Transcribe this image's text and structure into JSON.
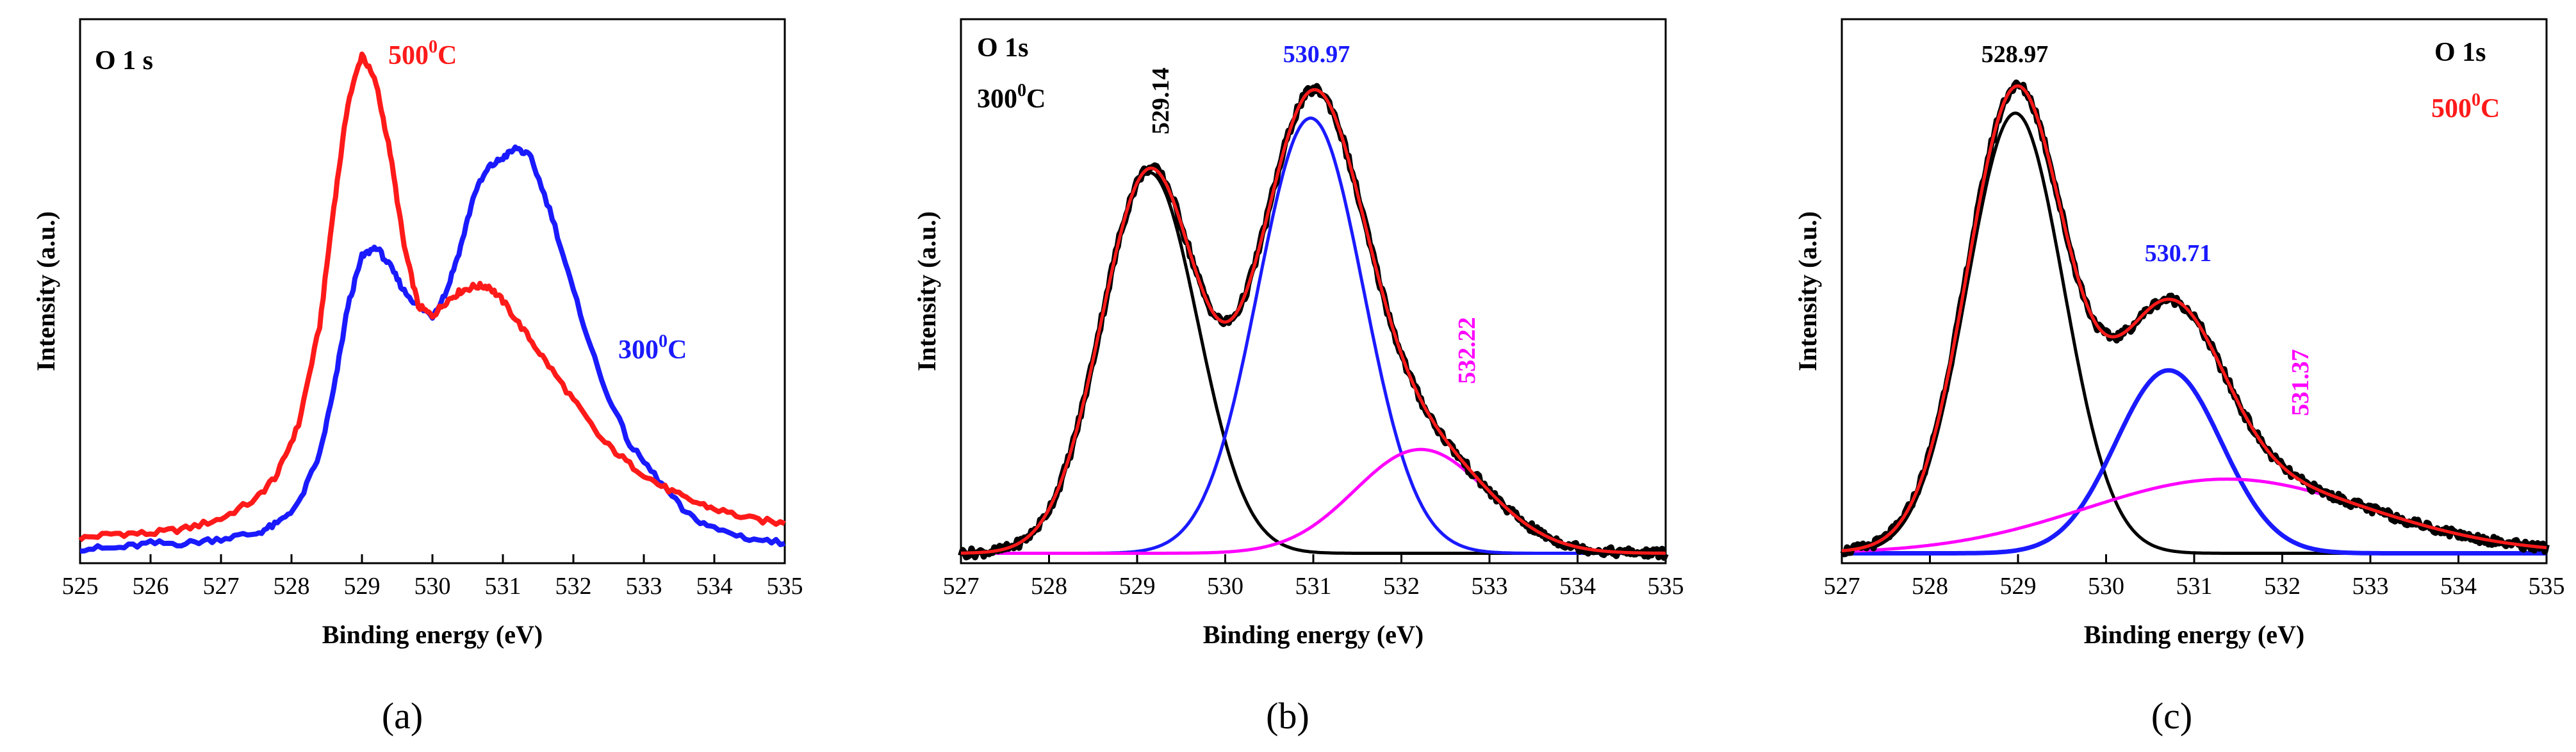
{
  "chart_data": [
    {
      "type": "line",
      "panel_label": "(a)",
      "annotation": "O 1 s",
      "xlabel": "Binding energy (eV)",
      "ylabel": "Intensity (a.u.)",
      "xlim": [
        525,
        535
      ],
      "ylim": [
        0,
        1.1
      ],
      "x_ticks": [
        525,
        526,
        527,
        528,
        529,
        530,
        531,
        532,
        533,
        534,
        535
      ],
      "x_tick_labels": [
        "525",
        "526",
        "527",
        "528",
        "529",
        "530",
        "531",
        "532",
        "533",
        "534",
        "535"
      ],
      "y_ticks": [],
      "series": [
        {
          "name": "500⁰C",
          "label_main": "500",
          "label_sup": "0",
          "label_tail": "C",
          "color": "#ff1a1a",
          "label_corner": "top-left",
          "x": [
            525.0,
            525.5,
            526.0,
            526.5,
            527.0,
            527.5,
            527.8,
            528.1,
            528.4,
            528.6,
            528.8,
            529.0,
            529.2,
            529.4,
            529.6,
            529.8,
            530.0,
            530.2,
            530.4,
            530.6,
            530.8,
            531.0,
            531.3,
            531.6,
            532.0,
            532.4,
            532.8,
            533.2,
            533.6,
            534.0,
            534.5,
            535.0
          ],
          "y": [
            0.05,
            0.06,
            0.06,
            0.07,
            0.09,
            0.13,
            0.18,
            0.28,
            0.48,
            0.72,
            0.93,
            1.03,
            0.97,
            0.83,
            0.64,
            0.52,
            0.5,
            0.53,
            0.55,
            0.56,
            0.56,
            0.53,
            0.47,
            0.41,
            0.33,
            0.25,
            0.2,
            0.16,
            0.13,
            0.11,
            0.09,
            0.08
          ]
        },
        {
          "name": "300⁰C",
          "label_main": "300",
          "label_sup": "0",
          "label_tail": "C",
          "color": "#1a1aff",
          "label_corner": "mid-right",
          "x": [
            525.0,
            525.5,
            526.0,
            526.5,
            527.0,
            527.5,
            527.8,
            528.1,
            528.4,
            528.6,
            528.8,
            529.0,
            529.2,
            529.4,
            529.6,
            529.8,
            530.0,
            530.2,
            530.4,
            530.6,
            530.8,
            531.0,
            531.2,
            531.4,
            531.7,
            532.0,
            532.4,
            532.8,
            533.2,
            533.6,
            534.0,
            534.5,
            535.0
          ],
          "y": [
            0.03,
            0.03,
            0.04,
            0.04,
            0.05,
            0.06,
            0.08,
            0.12,
            0.22,
            0.35,
            0.52,
            0.62,
            0.64,
            0.6,
            0.55,
            0.52,
            0.5,
            0.55,
            0.64,
            0.75,
            0.8,
            0.82,
            0.84,
            0.82,
            0.7,
            0.55,
            0.37,
            0.24,
            0.17,
            0.1,
            0.07,
            0.05,
            0.04
          ]
        }
      ]
    },
    {
      "type": "line",
      "panel_label": "(b)",
      "annotation": "O 1s",
      "annotation2_main": "300",
      "annotation2_sup": "0",
      "annotation2_tail": "C",
      "xlabel": "Binding energy (eV)",
      "ylabel": "Intensity (a.u.)",
      "xlim": [
        527,
        535
      ],
      "ylim": [
        0,
        1.1
      ],
      "x_ticks": [
        527,
        528,
        529,
        530,
        531,
        532,
        533,
        534,
        535
      ],
      "x_tick_labels": [
        "527",
        "528",
        "529",
        "530",
        "531",
        "532",
        "533",
        "534",
        "535"
      ],
      "y_ticks": [],
      "peaks": [
        {
          "center": 529.14,
          "label": "529.14",
          "color": "#000000",
          "amp": 0.77,
          "sigma": 0.55,
          "rotated": true
        },
        {
          "center": 530.97,
          "label": "530.97",
          "color": "#1a1aff",
          "amp": 0.88,
          "sigma": 0.6,
          "rotated": false
        },
        {
          "center": 532.22,
          "label": "532.22",
          "color": "#ff00ff",
          "amp": 0.21,
          "sigma": 0.75,
          "rotated": true
        }
      ],
      "series": [
        {
          "name": "experimental",
          "color": "#000000",
          "kind": "measured"
        },
        {
          "name": "fit envelope",
          "color": "#ff1a1a",
          "kind": "envelope"
        }
      ]
    },
    {
      "type": "line",
      "panel_label": "(c)",
      "annotation": "O 1s",
      "annotation2_main": "500",
      "annotation2_sup": "0",
      "annotation2_tail": "C",
      "xlabel": "Binding energy (eV)",
      "ylabel": "Intensity (a.u.)",
      "xlim": [
        527,
        535
      ],
      "ylim": [
        0,
        1.1
      ],
      "x_ticks": [
        527,
        528,
        529,
        530,
        531,
        532,
        533,
        534,
        535
      ],
      "x_tick_labels": [
        "527",
        "528",
        "529",
        "530",
        "531",
        "532",
        "533",
        "534",
        "535"
      ],
      "y_ticks": [],
      "peaks": [
        {
          "center": 528.97,
          "label": "528.97",
          "color": "#000000",
          "amp": 0.89,
          "sigma": 0.55,
          "rotated": false
        },
        {
          "center": 530.71,
          "label": "530.71",
          "color": "#1a1aff",
          "amp": 0.37,
          "sigma": 0.6,
          "rotated": false
        },
        {
          "center": 531.37,
          "label": "531.37",
          "color": "#ff00ff",
          "amp": 0.15,
          "sigma": 1.6,
          "rotated": true
        }
      ],
      "series": [
        {
          "name": "experimental",
          "color": "#000000",
          "kind": "measured"
        },
        {
          "name": "fit envelope",
          "color": "#ff1a1a",
          "kind": "envelope"
        }
      ]
    }
  ]
}
